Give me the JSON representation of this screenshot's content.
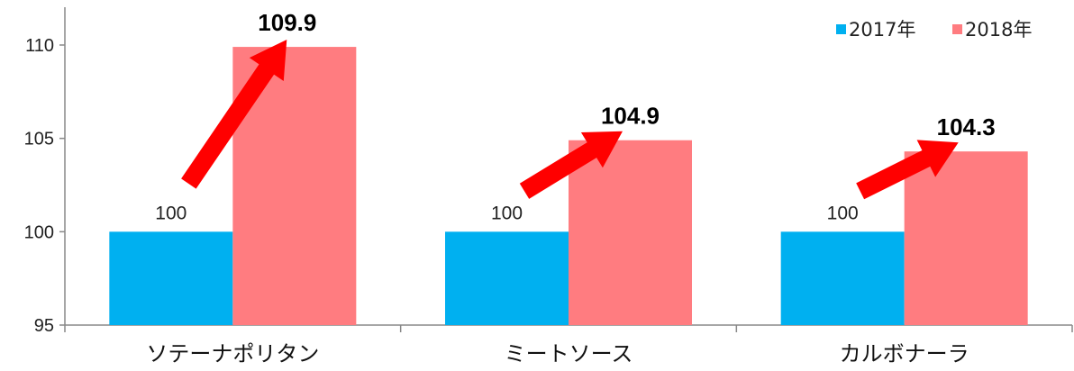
{
  "chart_data": {
    "type": "bar",
    "categories": [
      "ソテーナポリタン",
      "ミートソース",
      "カルボナーラ"
    ],
    "series": [
      {
        "name": "2017年",
        "values": [
          100,
          100,
          100
        ],
        "color": "#00B0F0"
      },
      {
        "name": "2018年",
        "values": [
          109.9,
          104.9,
          104.3
        ],
        "color": "#FF7C80"
      }
    ],
    "ylim": [
      95,
      110
    ],
    "yticks": [
      95,
      100,
      105,
      110
    ],
    "data_labels": {
      "2017年": [
        "100",
        "100",
        "100"
      ],
      "2018年": [
        "109.9",
        "104.9",
        "104.3"
      ]
    },
    "arrow_color": "#FF0000",
    "legend_position": "top-right",
    "grid": false,
    "title": "",
    "xlabel": "",
    "ylabel": ""
  }
}
